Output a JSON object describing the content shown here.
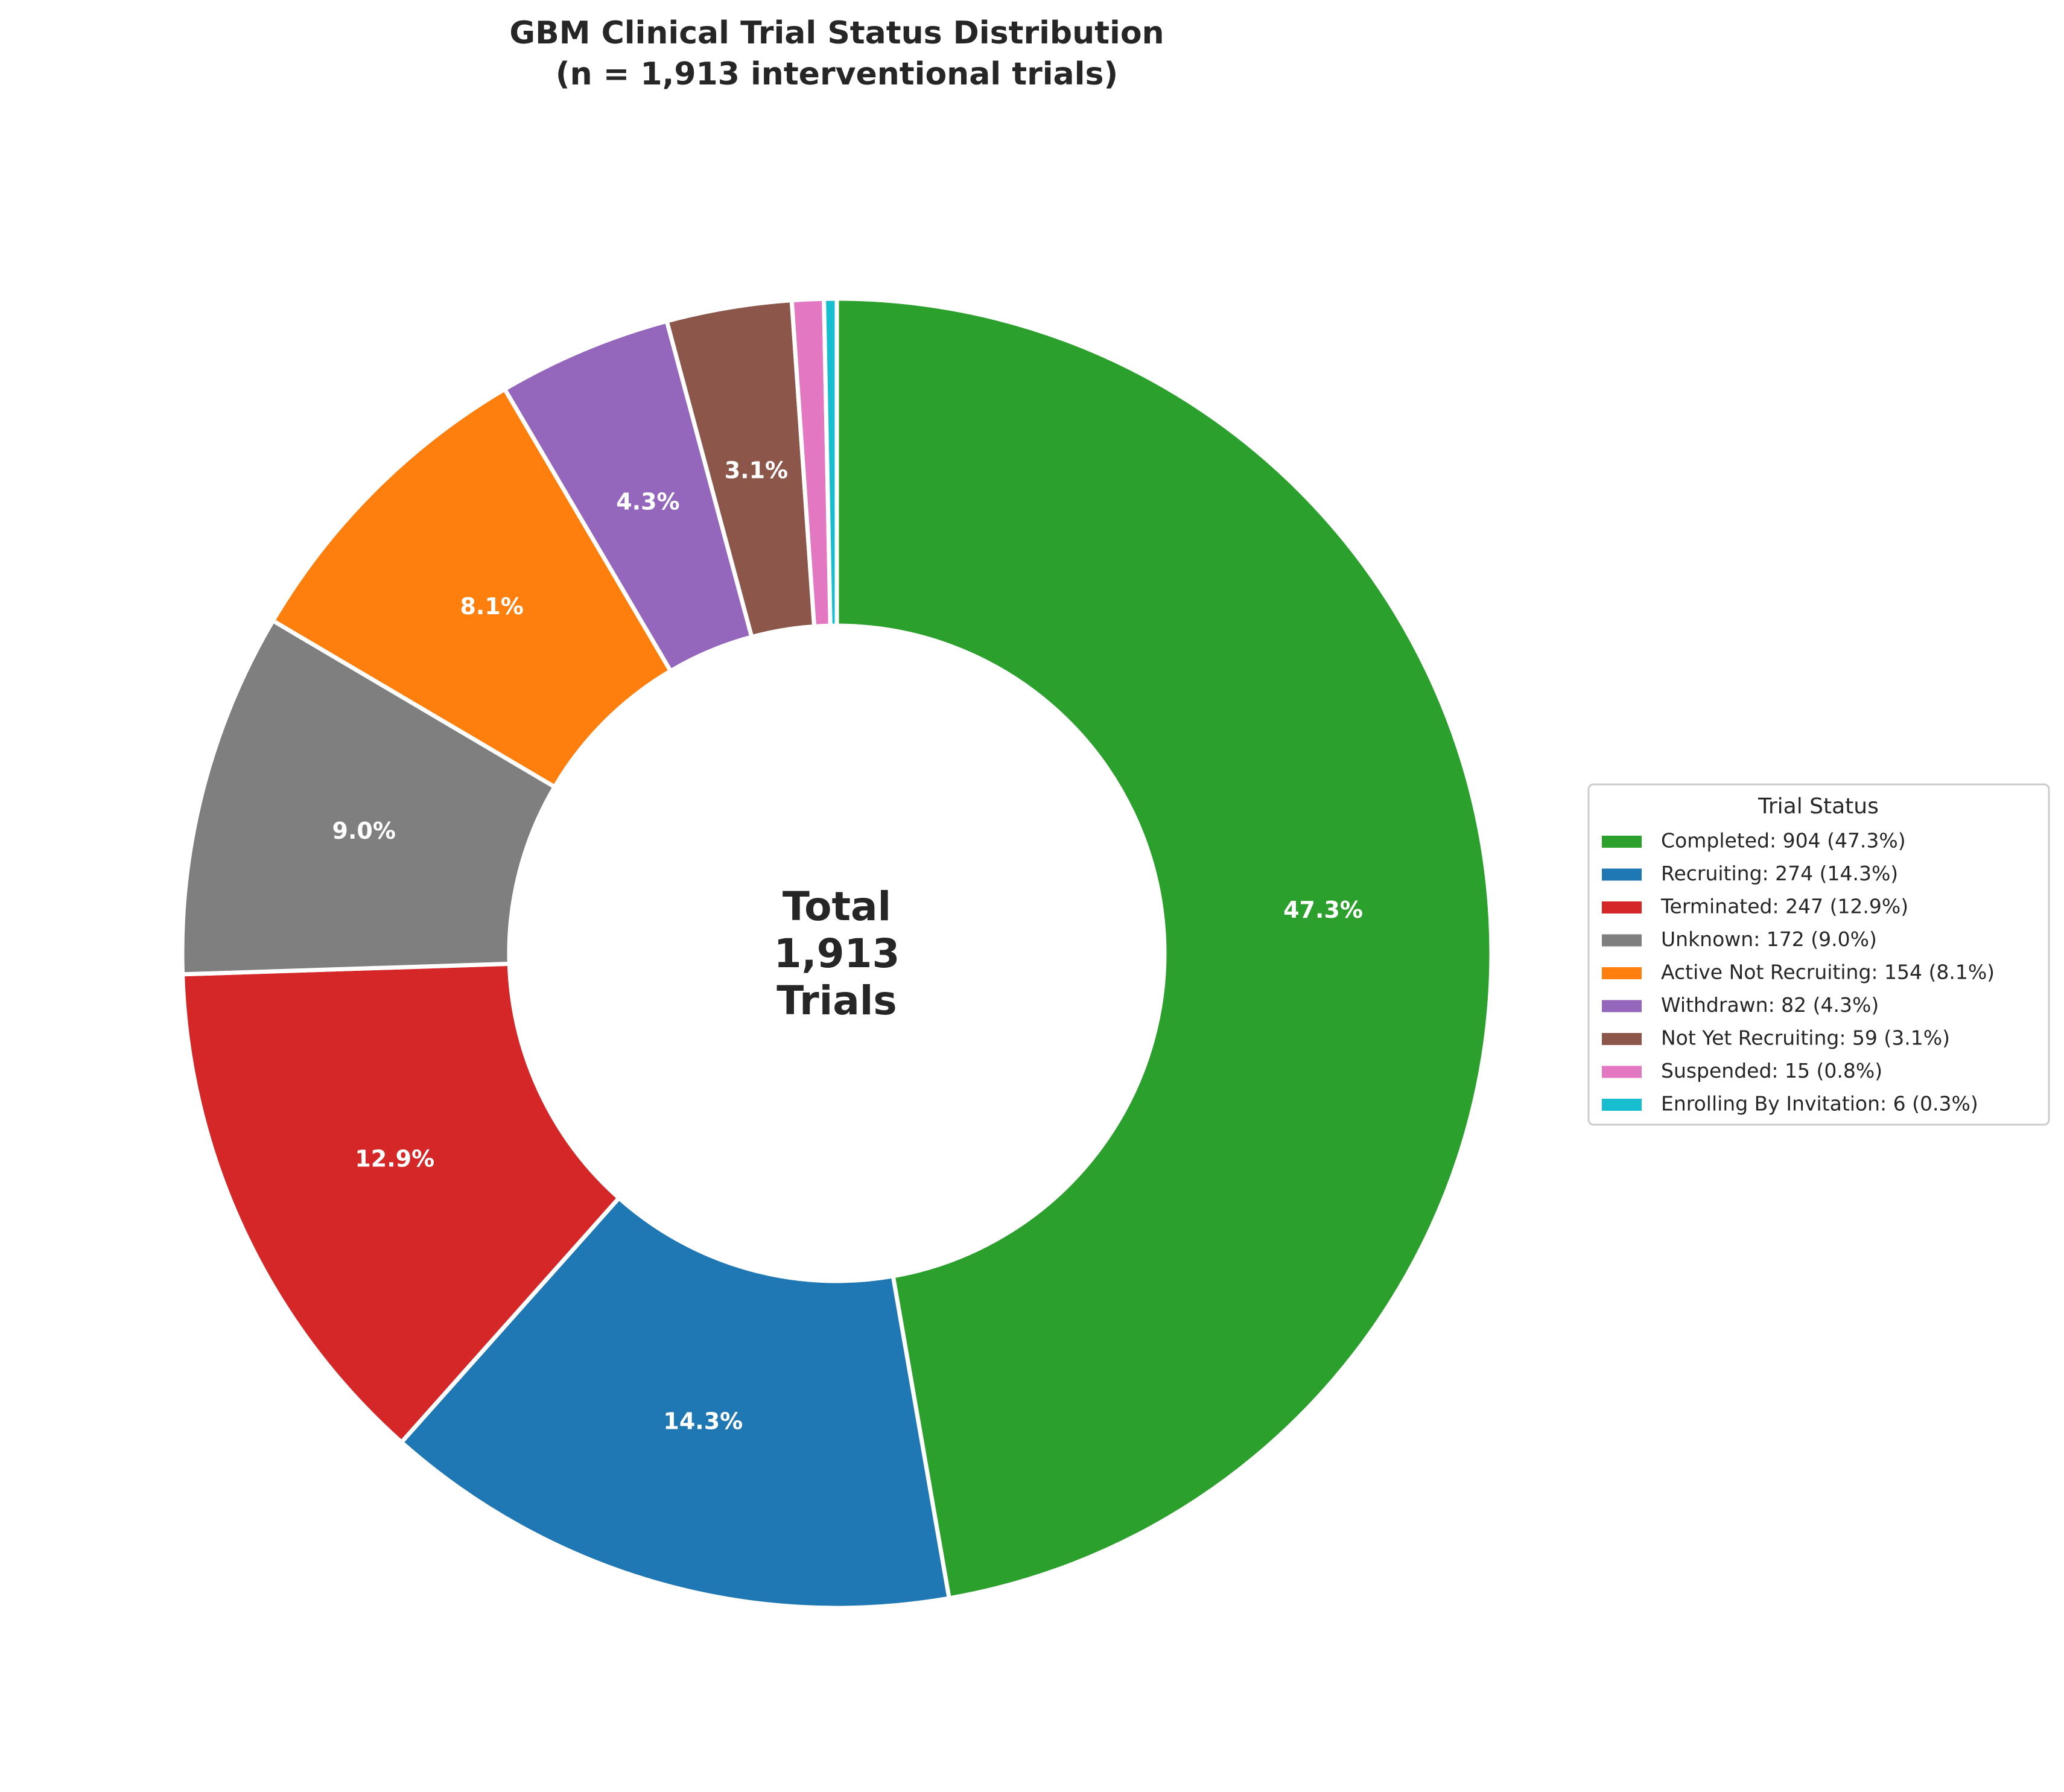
{
  "chart_data": {
    "type": "pie",
    "donut": true,
    "title": "GBM Clinical Trial Status Distribution",
    "subtitle": "(n = 1,913 interventional trials)",
    "center_label": [
      "Total",
      "1,913",
      "Trials"
    ],
    "start_angle_deg": 90,
    "direction": "clockwise",
    "legend": {
      "title": "Trial Status",
      "placement": "right"
    },
    "slices": [
      {
        "label": "Completed",
        "value": 904,
        "percent_label": "47.3%",
        "legend_label": "Completed: 904 (47.3%)",
        "color": "#2ca02c"
      },
      {
        "label": "Recruiting",
        "value": 274,
        "percent_label": "14.3%",
        "legend_label": "Recruiting: 274 (14.3%)",
        "color": "#1f77b4"
      },
      {
        "label": "Terminated",
        "value": 247,
        "percent_label": "12.9%",
        "legend_label": "Terminated: 247 (12.9%)",
        "color": "#d62728"
      },
      {
        "label": "Unknown",
        "value": 172,
        "percent_label": "9.0%",
        "legend_label": "Unknown: 172 (9.0%)",
        "color": "#7f7f7f"
      },
      {
        "label": "Active Not Recruiting",
        "value": 154,
        "percent_label": "8.1%",
        "legend_label": "Active Not Recruiting: 154 (8.1%)",
        "color": "#ff7f0e"
      },
      {
        "label": "Withdrawn",
        "value": 82,
        "percent_label": "4.3%",
        "legend_label": "Withdrawn: 82 (4.3%)",
        "color": "#9467bd"
      },
      {
        "label": "Not Yet Recruiting",
        "value": 59,
        "percent_label": "3.1%",
        "legend_label": "Not Yet Recruiting: 59 (3.1%)",
        "color": "#8c564b"
      },
      {
        "label": "Suspended",
        "value": 15,
        "percent_label": "",
        "legend_label": "Suspended: 15 (0.8%)",
        "color": "#e377c2"
      },
      {
        "label": "Enrolling By Invitation",
        "value": 6,
        "percent_label": "",
        "legend_label": "Enrolling By Invitation: 6 (0.3%)",
        "color": "#17becf"
      }
    ]
  }
}
